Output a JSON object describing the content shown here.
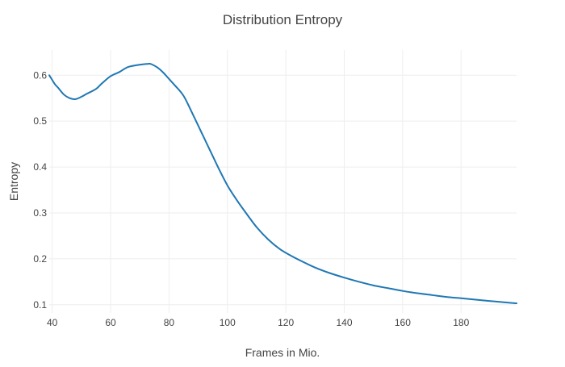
{
  "chart_data": {
    "type": "line",
    "title": "Distribution Entropy",
    "xlabel": "Frames in Mio.",
    "ylabel": "Entropy",
    "xlim": [
      39,
      199
    ],
    "ylim": [
      0.082,
      0.655
    ],
    "x_ticks": [
      40,
      60,
      80,
      100,
      120,
      140,
      160,
      180
    ],
    "y_ticks": [
      0.1,
      0.2,
      0.3,
      0.4,
      0.5,
      0.6
    ],
    "grid": true,
    "legend": "none",
    "series": [
      {
        "color": "#1f77b4",
        "x": [
          39,
          40,
          41,
          42,
          44,
          46,
          48,
          50,
          52,
          55,
          57,
          60,
          63,
          66,
          70,
          73,
          74,
          76,
          78,
          80,
          82,
          85,
          88,
          91,
          94,
          97,
          100,
          103,
          106,
          110,
          114,
          118,
          122,
          126,
          130,
          135,
          140,
          145,
          150,
          155,
          160,
          165,
          170,
          175,
          180,
          185,
          190,
          195,
          199
        ],
        "y": [
          0.6,
          0.59,
          0.58,
          0.573,
          0.558,
          0.55,
          0.548,
          0.553,
          0.56,
          0.57,
          0.582,
          0.598,
          0.607,
          0.618,
          0.623,
          0.625,
          0.624,
          0.617,
          0.606,
          0.592,
          0.578,
          0.555,
          0.517,
          0.477,
          0.437,
          0.397,
          0.36,
          0.33,
          0.303,
          0.269,
          0.242,
          0.221,
          0.206,
          0.193,
          0.181,
          0.169,
          0.159,
          0.15,
          0.142,
          0.136,
          0.13,
          0.125,
          0.121,
          0.117,
          0.114,
          0.111,
          0.108,
          0.105,
          0.103
        ]
      }
    ]
  }
}
